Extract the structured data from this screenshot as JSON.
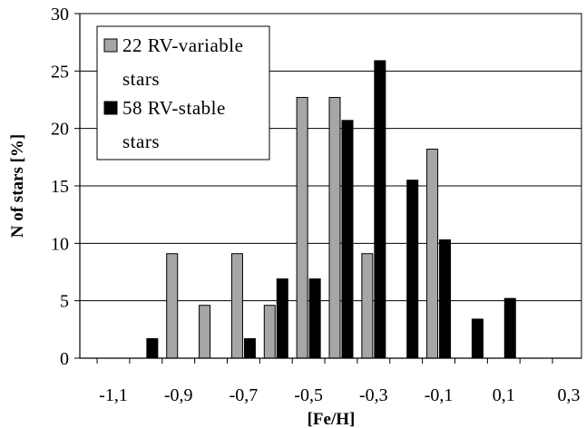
{
  "chart_data": {
    "type": "bar",
    "title": "",
    "xlabel": "[Fe/H]",
    "ylabel": "N of stars [%]",
    "ylim": [
      0,
      30
    ],
    "y_ticks": [
      "0",
      "5",
      "10",
      "15",
      "20",
      "25",
      "30"
    ],
    "x_ticks": [
      "-1,1",
      "-0,9",
      "-0,7",
      "-0,5",
      "-0,3",
      "-0,1",
      "0,1",
      "0,3"
    ],
    "grid": "horizontal",
    "legend_position": "top-left",
    "categories": [
      "-1.0",
      "-0.9",
      "-0.8",
      "-0.7",
      "-0.6",
      "-0.5",
      "-0.4",
      "-0.3",
      "-0.2",
      "-0.1",
      "0.0",
      "0.1"
    ],
    "series": [
      {
        "name": "22 RV-variable stars",
        "legend_lines": [
          "22 RV-variable",
          "stars"
        ],
        "color": "#a6a6a6",
        "values": [
          0,
          9.1,
          4.6,
          9.1,
          4.6,
          22.7,
          22.7,
          9.1,
          0,
          18.2,
          0,
          0
        ]
      },
      {
        "name": "58 RV-stable stars",
        "legend_lines": [
          "58 RV-stable",
          "stars"
        ],
        "color": "#000000",
        "values": [
          1.7,
          0,
          0,
          1.7,
          6.9,
          6.9,
          20.7,
          25.9,
          15.5,
          10.3,
          3.4,
          5.2
        ]
      }
    ]
  }
}
